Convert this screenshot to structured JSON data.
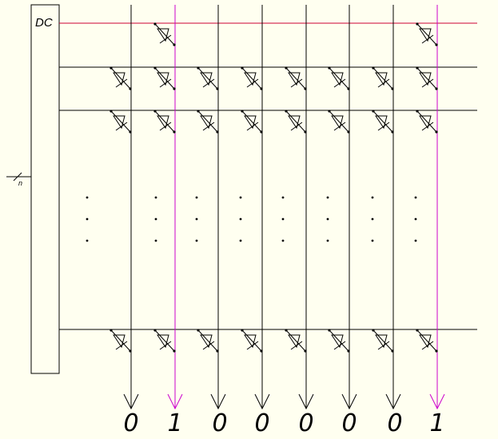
{
  "decoder": {
    "label": "DC"
  },
  "bus": {
    "width_label": "n"
  },
  "columns": [
    {
      "bit": "0",
      "selected": false
    },
    {
      "bit": "1",
      "selected": true
    },
    {
      "bit": "0",
      "selected": false
    },
    {
      "bit": "0",
      "selected": false
    },
    {
      "bit": "0",
      "selected": false
    },
    {
      "bit": "0",
      "selected": false
    },
    {
      "bit": "0",
      "selected": false
    },
    {
      "bit": "1",
      "selected": true
    }
  ],
  "rows": [
    {
      "active": true,
      "diodes": [
        false,
        true,
        false,
        false,
        false,
        false,
        false,
        true
      ]
    },
    {
      "active": false,
      "diodes": [
        true,
        true,
        true,
        true,
        true,
        true,
        true,
        true
      ]
    },
    {
      "active": false,
      "diodes": [
        true,
        true,
        true,
        true,
        true,
        true,
        true,
        true
      ]
    },
    {
      "active": false,
      "diodes": [
        true,
        true,
        true,
        true,
        true,
        true,
        true,
        true
      ]
    }
  ],
  "colors": {
    "background": "#fffff0",
    "line": "#000000",
    "active_row": "#cc0033",
    "selected_column": "#cc00cc"
  }
}
